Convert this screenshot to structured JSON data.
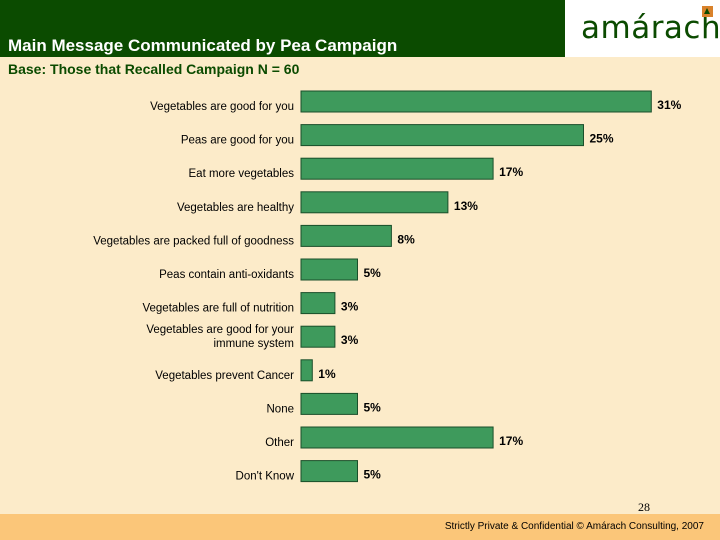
{
  "header": {
    "title": "Main Message Communicated by Pea Campaign",
    "subtitle": "Base: Those that Recalled Campaign N = 60",
    "logo_text": "amárach"
  },
  "chart_data": {
    "type": "bar",
    "orientation": "horizontal",
    "title": "Main Message Communicated by Pea Campaign",
    "subtitle": "Base: Those that Recalled Campaign N = 60",
    "categories": [
      "Vegetables are good for you",
      "Peas are good for you",
      "Eat more vegetables",
      "Vegetables are healthy",
      "Vegetables are packed full of goodness",
      "Peas contain anti-oxidants",
      "Vegetables are full of nutrition",
      "Vegetables are good for your immune system",
      "Vegetables prevent Cancer",
      "None",
      "Other",
      "Don't Know"
    ],
    "values": [
      31,
      25,
      17,
      13,
      8,
      5,
      3,
      3,
      1,
      5,
      17,
      5
    ],
    "labels": [
      "31%",
      "25%",
      "17%",
      "13%",
      "8%",
      "5%",
      "3%",
      "3%",
      "1%",
      "5%",
      "17%",
      "5%"
    ],
    "unit": "%",
    "xlim": [
      0,
      32
    ],
    "bar_color": "#3e9a5c",
    "bar_edge_color": "#1a4f2a"
  },
  "footer": {
    "page_number": "28",
    "text": "Strictly Private & Confidential © Amárach Consulting, 2007"
  },
  "colors": {
    "background": "#fcebc9",
    "header": "#0b4b00",
    "footer": "#fbc679"
  }
}
